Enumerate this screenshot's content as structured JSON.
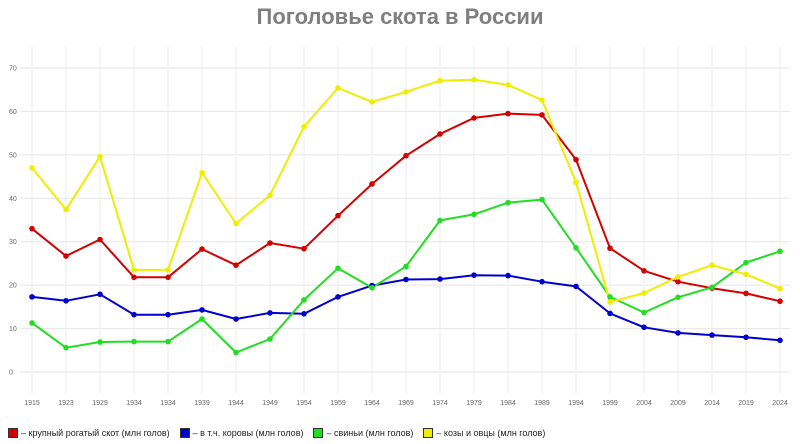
{
  "chart_data": {
    "type": "line",
    "title": "Поголовье скота в России",
    "xlabel": "",
    "ylabel": "",
    "ylim": [
      0,
      70
    ],
    "yticks": [
      0,
      10,
      20,
      30,
      40,
      50,
      60,
      70
    ],
    "grid": true,
    "legend_position": "bottom-left",
    "categories": [
      "1915",
      "1923",
      "1929",
      "1934",
      "1934",
      "1939",
      "1944",
      "1949",
      "1954",
      "1959",
      "1964",
      "1969",
      "1974",
      "1979",
      "1984",
      "1989",
      "1994",
      "1999",
      "2004",
      "2009",
      "2014",
      "2019",
      "2024"
    ],
    "series": [
      {
        "name": "– крупный рогатый скот (млн голов)",
        "color": "#d40000",
        "values": [
          33,
          26.7,
          30.5,
          21.8,
          21.8,
          28.3,
          24.6,
          29.7,
          28.4,
          36,
          43.3,
          49.8,
          54.8,
          58.5,
          59.5,
          59.2,
          48.9,
          28.5,
          23.3,
          20.8,
          19.3,
          18.1,
          16.3
        ]
      },
      {
        "name": "– в т.ч. коровы (млн голов)",
        "color": "#0000cc",
        "values": [
          17.3,
          16.4,
          17.9,
          13.2,
          13.2,
          14.3,
          12.2,
          13.6,
          13.4,
          17.3,
          19.9,
          21.3,
          21.4,
          22.3,
          22.2,
          20.8,
          19.7,
          13.5,
          10.3,
          9,
          8.5,
          8,
          7.3
        ]
      },
      {
        "name": "– свиньи (млн голов)",
        "color": "#22dd22",
        "values": [
          11.3,
          5.6,
          6.9,
          7,
          7,
          12.2,
          4.5,
          7.6,
          16.6,
          23.9,
          19.4,
          24.3,
          34.9,
          36.3,
          39,
          39.7,
          28.6,
          17.3,
          13.7,
          17.2,
          19.5,
          25.2,
          27.8
        ]
      },
      {
        "name": "– козы и овцы (млн голов)",
        "color": "#eeee00",
        "values": [
          47,
          37.4,
          49.6,
          23.5,
          23.5,
          45.9,
          34.2,
          40.7,
          56.5,
          65.4,
          62.2,
          64.5,
          67.1,
          67.3,
          66.1,
          62.6,
          43.7,
          16.1,
          18.2,
          21.9,
          24.6,
          22.5,
          19.2
        ]
      }
    ]
  }
}
